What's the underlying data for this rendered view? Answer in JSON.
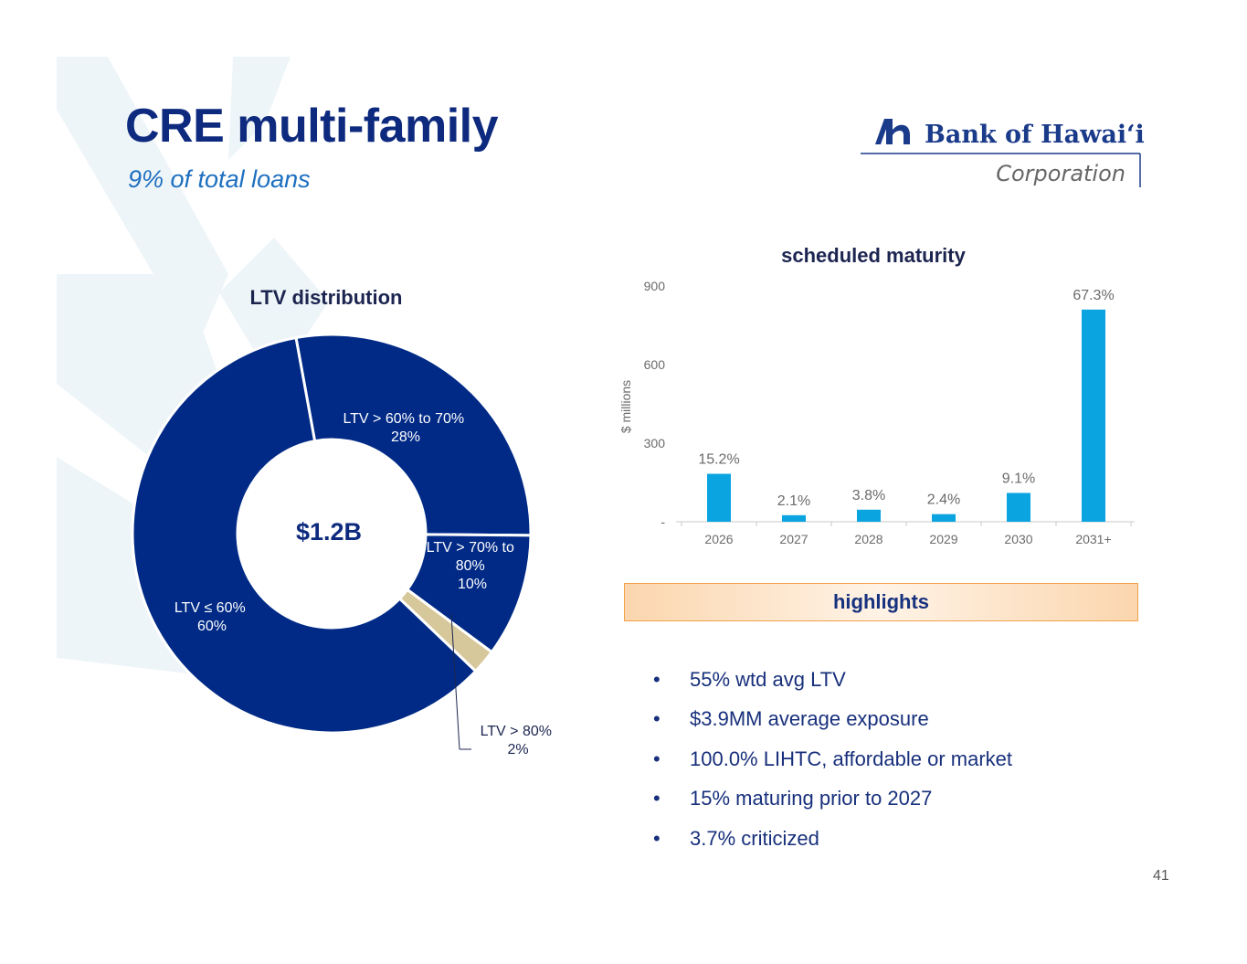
{
  "header": {
    "title": "CRE multi-family",
    "subtitle": "9% of total loans"
  },
  "logo": {
    "name": "Bank of Hawaiʻi",
    "sub": "Corporation",
    "color": "#1a3a8a"
  },
  "colors": {
    "navy": "#002a86",
    "tan": "#d6c89a",
    "bar": "#0aa4e0",
    "highlight_border": "#f2a24a"
  },
  "chart_data": [
    {
      "type": "pie",
      "title": "LTV distribution",
      "center_label": "$1.2B",
      "slices": [
        {
          "label": "LTV > 60% to 70%",
          "pct_label": "28%",
          "value": 28
        },
        {
          "label": "LTV > 70% to 80%",
          "pct_label": "10%",
          "value": 10
        },
        {
          "label": "LTV > 80%",
          "pct_label": "2%",
          "value": 2
        },
        {
          "label": "LTV ≤ 60%",
          "pct_label": "60%",
          "value": 60
        }
      ]
    },
    {
      "type": "bar",
      "title": "scheduled maturity",
      "ylabel": "$ millions",
      "xlabel": "",
      "ylim": [
        0,
        900
      ],
      "yticks": [
        "-",
        "300",
        "600",
        "900"
      ],
      "categories": [
        "2026",
        "2027",
        "2028",
        "2029",
        "2030",
        "2031+"
      ],
      "values": [
        183,
        25,
        46,
        29,
        110,
        810
      ],
      "data_labels": [
        "15.2%",
        "2.1%",
        "3.8%",
        "2.4%",
        "9.1%",
        "67.3%"
      ]
    }
  ],
  "highlights": {
    "heading": "highlights",
    "bullet_symbol": "•",
    "items": [
      "55% wtd avg LTV",
      "$3.9MM average exposure",
      "100.0% LIHTC, affordable or market",
      "15% maturing prior to 2027",
      "3.7% criticized"
    ]
  },
  "page_number": "41"
}
